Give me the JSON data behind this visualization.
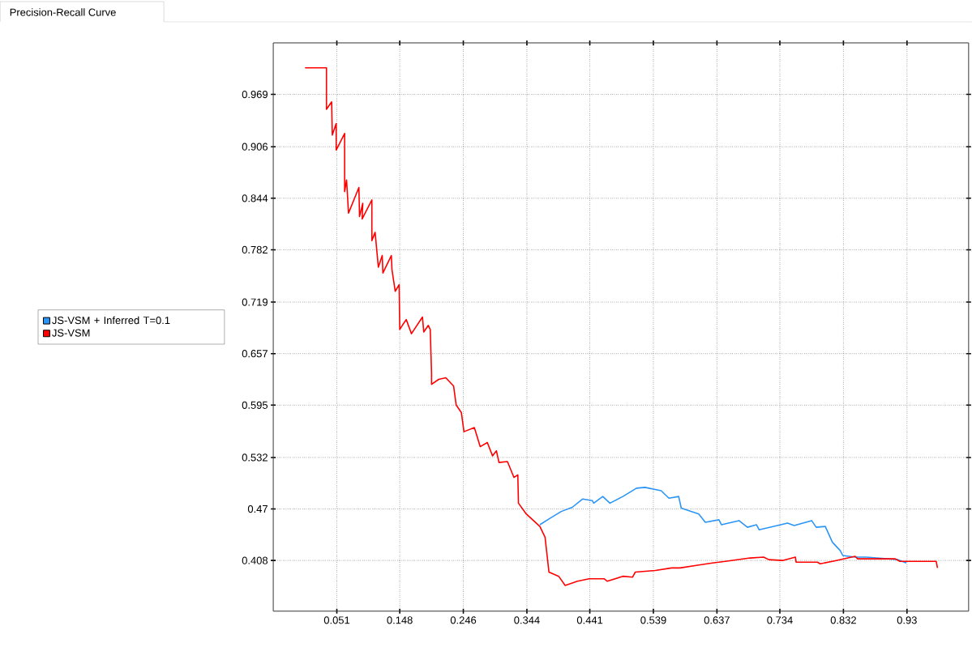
{
  "chart_data": {
    "type": "line",
    "title": "Precision-Recall Curve",
    "xlim": [
      -0.047,
      1.025
    ],
    "ylim": [
      0.347,
      1.031
    ],
    "xticks": [
      0.051,
      0.148,
      0.246,
      0.344,
      0.441,
      0.539,
      0.637,
      0.734,
      0.832,
      0.93
    ],
    "yticks": [
      0.408,
      0.47,
      0.532,
      0.595,
      0.657,
      0.719,
      0.782,
      0.844,
      0.906,
      0.969
    ],
    "grid": true,
    "legend": "left",
    "series": [
      {
        "name": "JS-VSM + Inferred T=0.1",
        "color": "#2b95f5",
        "x": [
          0.364,
          0.38,
          0.397,
          0.414,
          0.43,
          0.445,
          0.447,
          0.461,
          0.472,
          0.492,
          0.513,
          0.526,
          0.551,
          0.563,
          0.578,
          0.582,
          0.609,
          0.619,
          0.64,
          0.644,
          0.671,
          0.684,
          0.698,
          0.702,
          0.746,
          0.756,
          0.783,
          0.79,
          0.804,
          0.815,
          0.827,
          0.831,
          0.85,
          0.867,
          0.916,
          0.929
        ],
        "values": [
          0.451,
          0.459,
          0.467,
          0.472,
          0.482,
          0.48,
          0.477,
          0.485,
          0.477,
          0.485,
          0.495,
          0.496,
          0.492,
          0.483,
          0.485,
          0.471,
          0.464,
          0.454,
          0.457,
          0.451,
          0.456,
          0.448,
          0.451,
          0.445,
          0.453,
          0.45,
          0.456,
          0.448,
          0.449,
          0.43,
          0.42,
          0.414,
          0.412,
          0.412,
          0.409,
          0.405
        ]
      },
      {
        "name": "JS-VSM",
        "color": "#ff0000",
        "x": [
          0.002,
          0.035,
          0.035,
          0.043,
          0.044,
          0.05,
          0.05,
          0.063,
          0.063,
          0.066,
          0.069,
          0.085,
          0.086,
          0.091,
          0.09,
          0.105,
          0.105,
          0.11,
          0.115,
          0.121,
          0.122,
          0.135,
          0.136,
          0.141,
          0.147,
          0.148,
          0.152,
          0.158,
          0.166,
          0.183,
          0.185,
          0.192,
          0.195,
          0.197,
          0.197,
          0.208,
          0.219,
          0.231,
          0.235,
          0.243,
          0.247,
          0.263,
          0.272,
          0.283,
          0.291,
          0.297,
          0.301,
          0.314,
          0.324,
          0.33,
          0.331,
          0.343,
          0.364,
          0.372,
          0.378,
          0.393,
          0.403,
          0.422,
          0.44,
          0.463,
          0.468,
          0.492,
          0.507,
          0.511,
          0.542,
          0.567,
          0.58,
          0.605,
          0.63,
          0.65,
          0.688,
          0.709,
          0.717,
          0.738,
          0.758,
          0.759,
          0.792,
          0.796,
          0.821,
          0.85,
          0.854,
          0.912,
          0.919,
          0.975,
          0.977
        ],
        "values": [
          1.001,
          1.001,
          0.951,
          0.96,
          0.92,
          0.934,
          0.902,
          0.922,
          0.852,
          0.866,
          0.826,
          0.857,
          0.822,
          0.838,
          0.819,
          0.842,
          0.793,
          0.803,
          0.761,
          0.775,
          0.754,
          0.775,
          0.758,
          0.732,
          0.74,
          0.686,
          0.691,
          0.698,
          0.681,
          0.701,
          0.683,
          0.691,
          0.686,
          0.634,
          0.62,
          0.626,
          0.628,
          0.618,
          0.595,
          0.586,
          0.563,
          0.568,
          0.545,
          0.55,
          0.534,
          0.54,
          0.526,
          0.527,
          0.508,
          0.511,
          0.477,
          0.464,
          0.449,
          0.436,
          0.394,
          0.389,
          0.378,
          0.383,
          0.386,
          0.386,
          0.383,
          0.389,
          0.388,
          0.394,
          0.396,
          0.399,
          0.399,
          0.402,
          0.405,
          0.407,
          0.411,
          0.412,
          0.409,
          0.408,
          0.412,
          0.406,
          0.406,
          0.404,
          0.408,
          0.413,
          0.41,
          0.41,
          0.407,
          0.407,
          0.399
        ]
      }
    ]
  }
}
